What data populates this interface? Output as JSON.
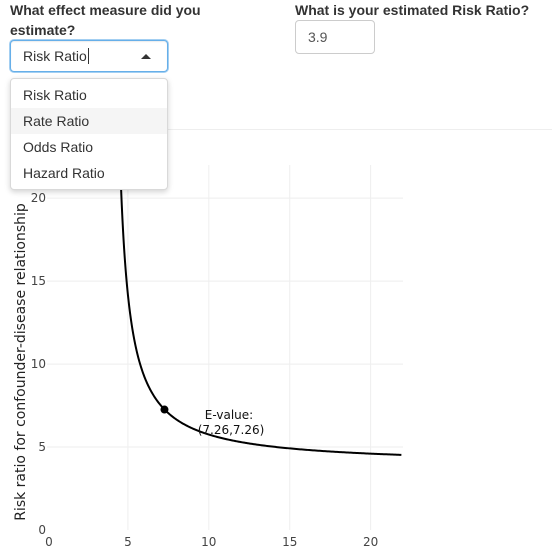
{
  "form": {
    "measure_label": "What effect measure did you estimate?",
    "rr_label": "What is your estimated Risk Ratio?",
    "selected_value": "Risk Ratio",
    "rr_value": "3.9",
    "options": [
      "Risk Ratio",
      "Rate Ratio",
      "Odds Ratio",
      "Hazard Ratio"
    ],
    "highlighted_option": "Rate Ratio"
  },
  "chart_data": {
    "type": "line",
    "xlim": [
      0,
      22
    ],
    "ylim": [
      0,
      22
    ],
    "x_ticks": [
      0,
      5,
      10,
      15,
      20
    ],
    "y_ticks": [
      0,
      5,
      10,
      15,
      20
    ],
    "ylabel": "Risk ratio for confounder-disease relationship",
    "grid": true,
    "rr": 3.9,
    "curve_x_range": [
      4.52,
      21.9
    ],
    "evalue_point": {
      "x": 7.26,
      "y": 7.26
    },
    "annotation": {
      "line1": "E-value:",
      "line2": "(7.26,7.26)"
    },
    "colors": {
      "line": "#000000",
      "grid": "#eeeeee"
    }
  }
}
